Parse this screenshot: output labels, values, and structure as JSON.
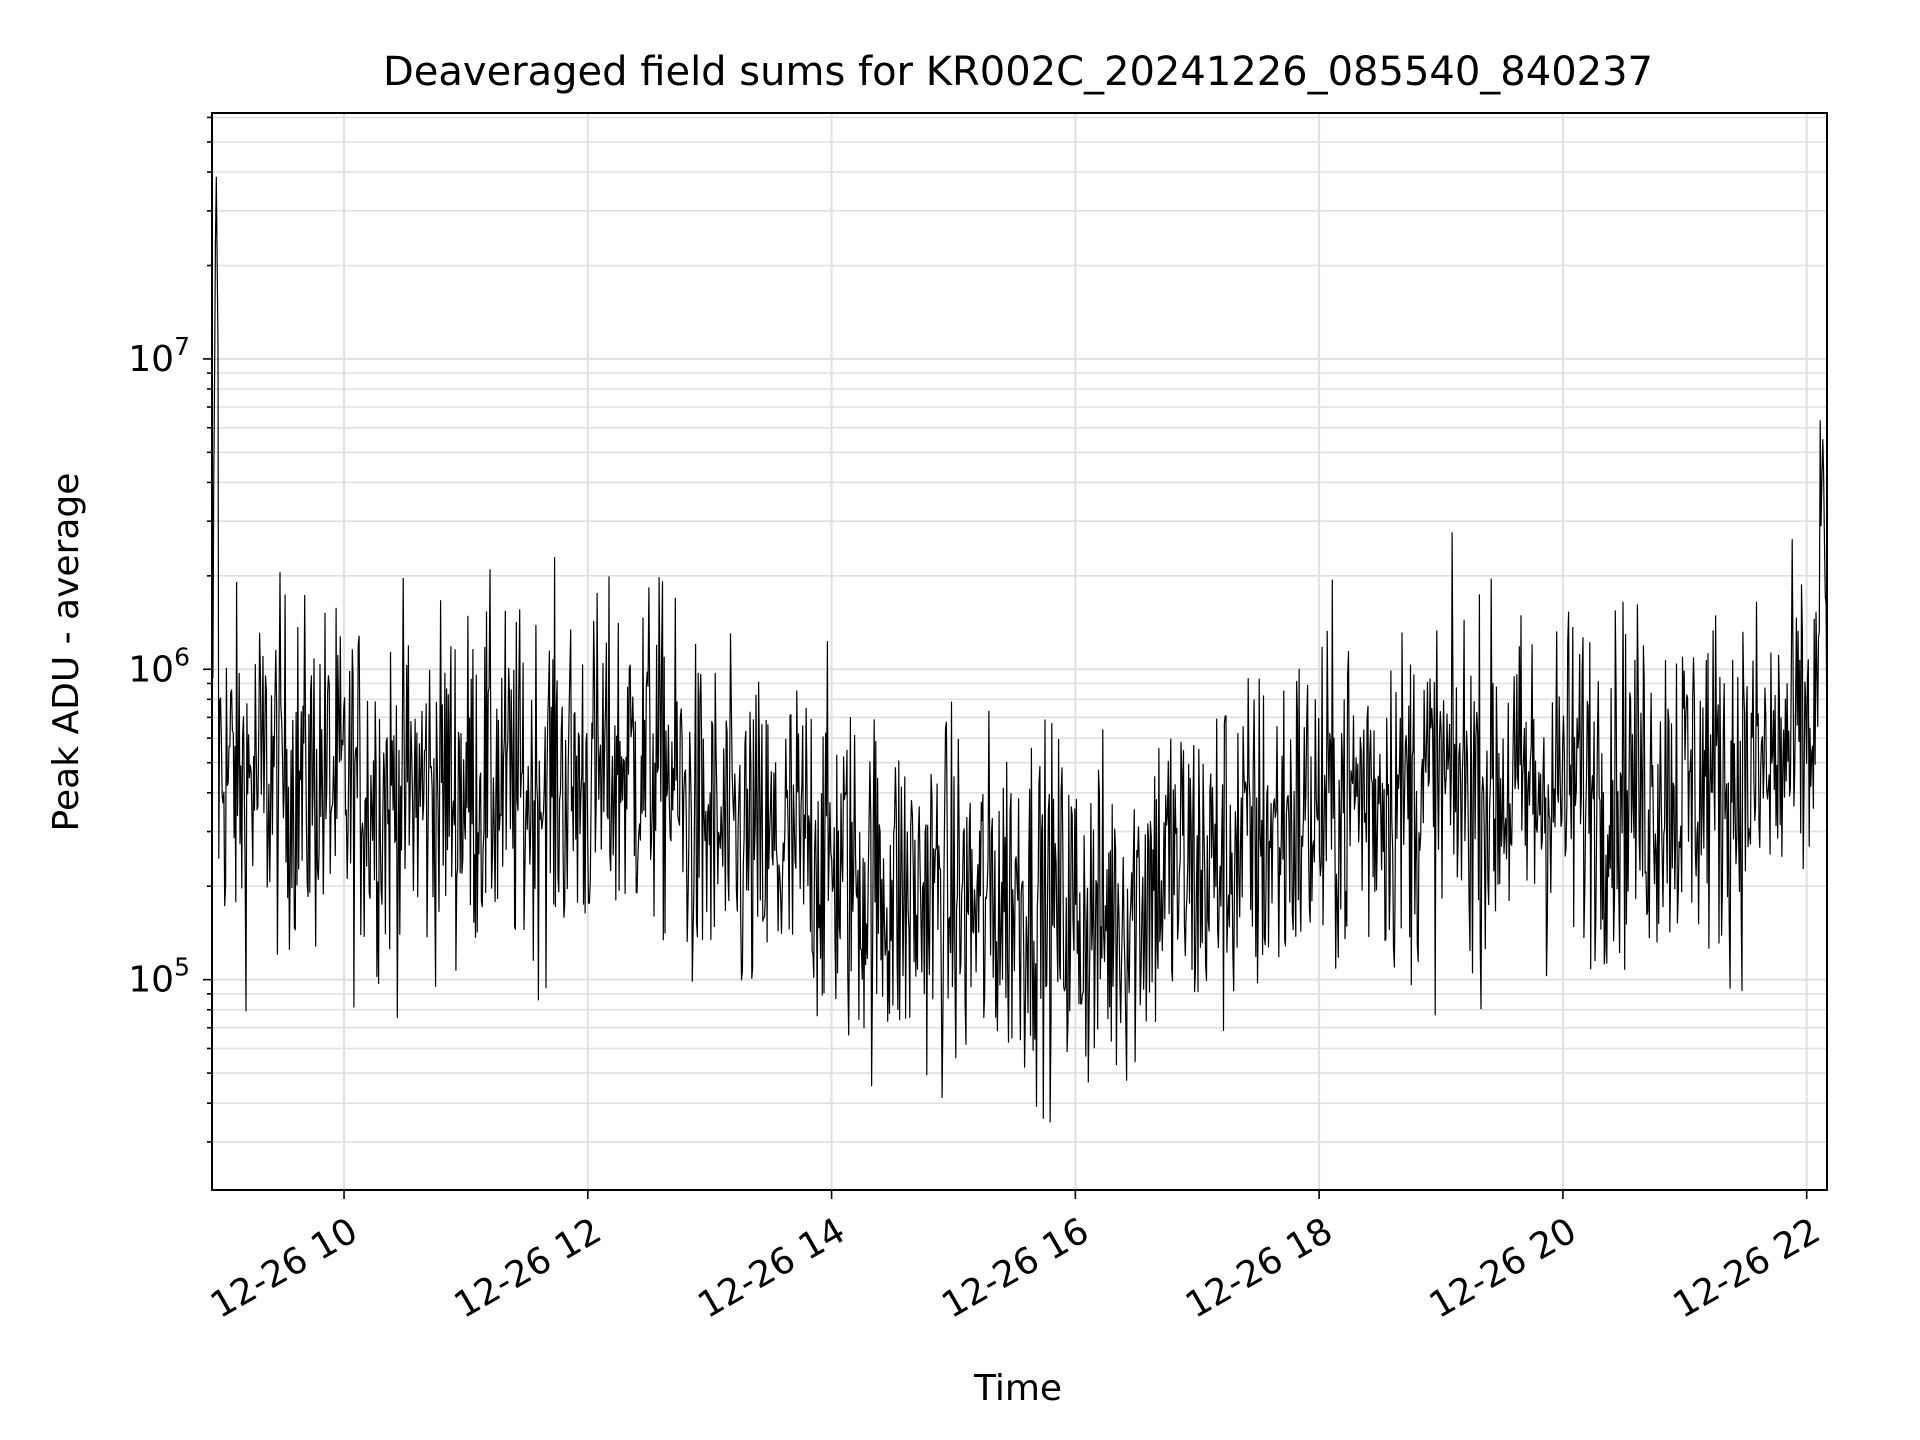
{
  "chart_data": {
    "type": "line",
    "title": "Deaveraged field sums for KR002C_20241226_085540_840237",
    "xlabel": "Time",
    "ylabel": "Peak ADU - average",
    "x_axis": {
      "kind": "datetime",
      "start": "2024-12-26 08:55",
      "end": "2024-12-26 22:10",
      "ticks": [
        {
          "value": "2024-12-26 10:00",
          "label": "12-26 10"
        },
        {
          "value": "2024-12-26 12:00",
          "label": "12-26 12"
        },
        {
          "value": "2024-12-26 14:00",
          "label": "12-26 14"
        },
        {
          "value": "2024-12-26 16:00",
          "label": "12-26 16"
        },
        {
          "value": "2024-12-26 18:00",
          "label": "12-26 18"
        },
        {
          "value": "2024-12-26 20:00",
          "label": "12-26 20"
        },
        {
          "value": "2024-12-26 22:00",
          "label": "12-26 22"
        }
      ]
    },
    "y_axis": {
      "scale": "log",
      "range": [
        21000,
        62000000
      ],
      "ticks": [
        {
          "value": 100000,
          "base": "10",
          "exp": "5"
        },
        {
          "value": 1000000,
          "base": "10",
          "exp": "6"
        },
        {
          "value": 10000000,
          "base": "10",
          "exp": "7"
        }
      ]
    },
    "grid": true,
    "line_color": "#000000",
    "grid_color": "#e0e0e0",
    "series": [
      {
        "x": [
          "2024-12-26 08:55",
          "2024-12-26 08:57",
          "2024-12-26 09:00",
          "2024-12-26 09:10",
          "2024-12-26 09:20",
          "2024-12-26 09:30",
          "2024-12-26 09:40",
          "2024-12-26 09:50",
          "2024-12-26 10:00",
          "2024-12-26 10:10",
          "2024-12-26 10:20",
          "2024-12-26 10:30",
          "2024-12-26 10:40",
          "2024-12-26 10:50",
          "2024-12-26 11:00",
          "2024-12-26 11:10",
          "2024-12-26 11:20",
          "2024-12-26 11:30",
          "2024-12-26 11:40",
          "2024-12-26 11:50",
          "2024-12-26 12:00",
          "2024-12-26 12:10",
          "2024-12-26 12:20",
          "2024-12-26 12:30",
          "2024-12-26 12:40",
          "2024-12-26 12:50",
          "2024-12-26 13:00",
          "2024-12-26 13:10",
          "2024-12-26 13:20",
          "2024-12-26 13:30",
          "2024-12-26 13:40",
          "2024-12-26 13:50",
          "2024-12-26 14:00",
          "2024-12-26 14:10",
          "2024-12-26 14:20",
          "2024-12-26 14:30",
          "2024-12-26 14:40",
          "2024-12-26 14:50",
          "2024-12-26 15:00",
          "2024-12-26 15:10",
          "2024-12-26 15:20",
          "2024-12-26 15:30",
          "2024-12-26 15:40",
          "2024-12-26 15:50",
          "2024-12-26 16:00",
          "2024-12-26 16:10",
          "2024-12-26 16:20",
          "2024-12-26 16:30",
          "2024-12-26 16:40",
          "2024-12-26 16:50",
          "2024-12-26 17:00",
          "2024-12-26 17:10",
          "2024-12-26 17:20",
          "2024-12-26 17:30",
          "2024-12-26 17:40",
          "2024-12-26 17:50",
          "2024-12-26 18:00",
          "2024-12-26 18:10",
          "2024-12-26 18:20",
          "2024-12-26 18:30",
          "2024-12-26 18:40",
          "2024-12-26 18:50",
          "2024-12-26 19:00",
          "2024-12-26 19:10",
          "2024-12-26 19:20",
          "2024-12-26 19:30",
          "2024-12-26 19:40",
          "2024-12-26 19:50",
          "2024-12-26 20:00",
          "2024-12-26 20:10",
          "2024-12-26 20:20",
          "2024-12-26 20:30",
          "2024-12-26 20:40",
          "2024-12-26 20:50",
          "2024-12-26 21:00",
          "2024-12-26 21:10",
          "2024-12-26 21:20",
          "2024-12-26 21:30",
          "2024-12-26 21:40",
          "2024-12-26 21:50",
          "2024-12-26 22:00",
          "2024-12-26 22:05",
          "2024-12-26 22:08",
          "2024-12-26 22:10"
        ],
        "y": [
          600000,
          45000000,
          500000,
          420000,
          460000,
          480000,
          430000,
          450000,
          400000,
          420000,
          380000,
          410000,
          400000,
          430000,
          420000,
          440000,
          420000,
          400000,
          450000,
          430000,
          440000,
          460000,
          500000,
          520000,
          480000,
          320000,
          300000,
          270000,
          260000,
          250000,
          260000,
          280000,
          240000,
          220000,
          200000,
          190000,
          180000,
          190000,
          180000,
          170000,
          180000,
          190000,
          180000,
          170000,
          160000,
          150000,
          160000,
          180000,
          220000,
          230000,
          220000,
          240000,
          260000,
          280000,
          300000,
          340000,
          350000,
          380000,
          400000,
          420000,
          380000,
          400000,
          420000,
          430000,
          410000,
          420000,
          400000,
          420000,
          430000,
          440000,
          420000,
          440000,
          410000,
          430000,
          420000,
          450000,
          430000,
          450000,
          460000,
          520000,
          600000,
          700000,
          5800000,
          650000
        ],
        "noise_amplitude_decades": 0.55
      }
    ]
  }
}
